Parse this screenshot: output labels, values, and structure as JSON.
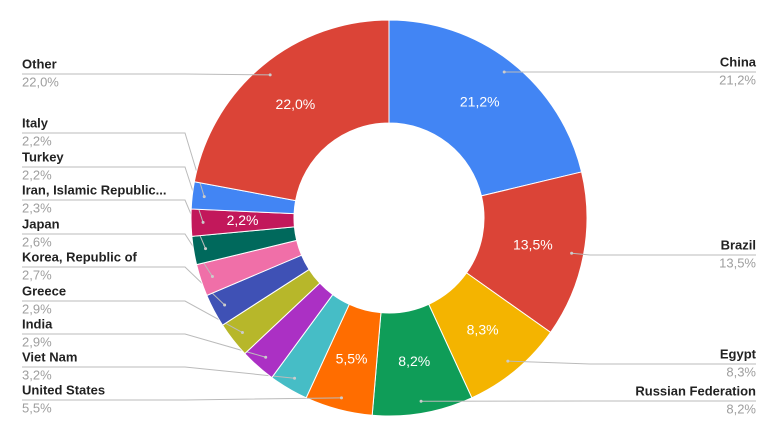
{
  "chart_data": {
    "type": "donut",
    "categories": [
      "China",
      "Brazil",
      "Egypt",
      "Russian Federation",
      "United States",
      "Viet Nam",
      "India",
      "Greece",
      "Korea, Republic of",
      "Japan",
      "Iran, Islamic Republic...",
      "Turkey",
      "Italy",
      "Other"
    ],
    "values": [
      21.2,
      13.5,
      8.3,
      8.2,
      5.5,
      3.2,
      2.9,
      2.9,
      2.7,
      2.6,
      2.3,
      2.2,
      2.2,
      22.0
    ],
    "value_labels": [
      "21,2%",
      "13,5%",
      "8,3%",
      "8,2%",
      "5,5%",
      "3,2%",
      "2,9%",
      "2,9%",
      "2,7%",
      "2,6%",
      "2,3%",
      "2,2%",
      "2,2%",
      "22,0%"
    ],
    "colors": [
      "#4285f4",
      "#db4437",
      "#f4b400",
      "#0f9d58",
      "#ff6d00",
      "#46bdc6",
      "#ab30c4",
      "#b7b72a",
      "#3f51b5",
      "#f06fa8",
      "#00695c",
      "#c2185b",
      "#4285f4",
      "#db4437"
    ]
  }
}
